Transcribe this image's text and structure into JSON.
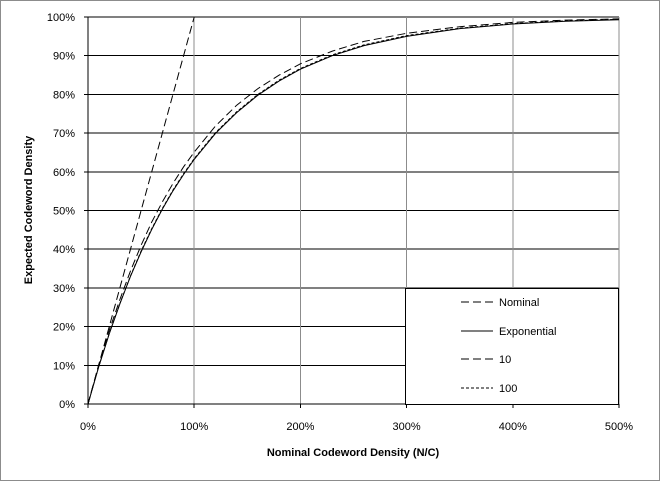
{
  "chart_data": {
    "type": "line",
    "title": "",
    "xlabel": "Nominal Codeword Density (N/C)",
    "ylabel": "Expected Codeword Density",
    "xlim": [
      0,
      5
    ],
    "ylim": [
      0,
      1
    ],
    "x_ticks": [
      0,
      1,
      2,
      3,
      4,
      5
    ],
    "y_ticks": [
      0,
      0.1,
      0.2,
      0.3,
      0.4,
      0.5,
      0.6,
      0.7,
      0.8,
      0.9,
      1.0
    ],
    "x_tick_labels": [
      "0%",
      "100%",
      "200%",
      "300%",
      "400%",
      "500%"
    ],
    "y_tick_labels": [
      "0%",
      "10%",
      "20%",
      "30%",
      "40%",
      "50%",
      "60%",
      "70%",
      "80%",
      "90%",
      "100%"
    ],
    "grid": true,
    "legend_placement": "bottom-right",
    "series": [
      {
        "name": "Nominal",
        "dash": "8,4",
        "x": [
          0,
          1
        ],
        "y": [
          0,
          1
        ]
      },
      {
        "name": "Exponential",
        "dash": "",
        "x": [
          0,
          0.1,
          0.2,
          0.3,
          0.4,
          0.5,
          0.6,
          0.7,
          0.8,
          0.9,
          1.0,
          1.2,
          1.4,
          1.6,
          1.8,
          2.0,
          2.3,
          2.6,
          3.0,
          3.5,
          4.0,
          4.5,
          5.0
        ],
        "y": [
          0,
          0.095,
          0.181,
          0.259,
          0.33,
          0.393,
          0.451,
          0.503,
          0.551,
          0.593,
          0.632,
          0.699,
          0.753,
          0.798,
          0.835,
          0.865,
          0.9,
          0.926,
          0.95,
          0.97,
          0.982,
          0.989,
          0.993
        ]
      },
      {
        "name": "10",
        "dash": "8,4",
        "x": [
          0,
          0.1,
          0.2,
          0.3,
          0.4,
          0.5,
          0.6,
          0.7,
          0.8,
          0.9,
          1.0,
          1.2,
          1.4,
          1.6,
          1.8,
          2.0,
          2.3,
          2.6,
          3.0,
          3.5,
          4.0,
          4.5,
          5.0
        ],
        "y": [
          0,
          0.1,
          0.19,
          0.27,
          0.344,
          0.41,
          0.47,
          0.522,
          0.57,
          0.613,
          0.651,
          0.718,
          0.772,
          0.815,
          0.85,
          0.879,
          0.912,
          0.937,
          0.958,
          0.975,
          0.986,
          0.992,
          0.995
        ]
      },
      {
        "name": "100",
        "dash": "3,2",
        "x": [
          0,
          0.1,
          0.2,
          0.3,
          0.4,
          0.5,
          0.6,
          0.7,
          0.8,
          0.9,
          1.0,
          1.2,
          1.4,
          1.6,
          1.8,
          2.0,
          2.3,
          2.6,
          3.0,
          3.5,
          4.0,
          4.5,
          5.0
        ],
        "y": [
          0,
          0.096,
          0.182,
          0.26,
          0.331,
          0.395,
          0.453,
          0.505,
          0.553,
          0.595,
          0.634,
          0.701,
          0.755,
          0.8,
          0.837,
          0.867,
          0.902,
          0.928,
          0.952,
          0.971,
          0.983,
          0.99,
          0.994
        ]
      }
    ]
  }
}
